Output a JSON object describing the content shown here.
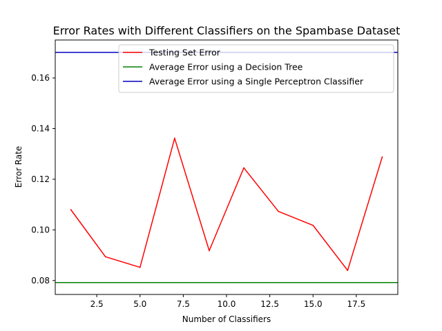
{
  "chart_data": {
    "type": "line",
    "title": "Error Rates with Different Classifiers on the Spambase Dataset",
    "xlabel": "Number of Classifiers",
    "ylabel": "Error Rate",
    "xlim": [
      0.1,
      19.9
    ],
    "ylim": [
      0.0745,
      0.175
    ],
    "xticks": [
      2.5,
      5.0,
      7.5,
      10.0,
      12.5,
      15.0,
      17.5
    ],
    "xtick_labels": [
      "2.5",
      "5.0",
      "7.5",
      "10.0",
      "12.5",
      "15.0",
      "17.5"
    ],
    "yticks": [
      0.08,
      0.1,
      0.12,
      0.14,
      0.16
    ],
    "ytick_labels": [
      "0.08",
      "0.10",
      "0.12",
      "0.14",
      "0.16"
    ],
    "grid": false,
    "legend_position": "top-right",
    "series": [
      {
        "name": "Testing Set Error",
        "color": "#ff0000",
        "kind": "line",
        "x": [
          1,
          3,
          5,
          7,
          9,
          11,
          13,
          15,
          17,
          19
        ],
        "y": [
          0.108,
          0.0894,
          0.0852,
          0.1362,
          0.0918,
          0.1245,
          0.1073,
          0.1018,
          0.084,
          0.1288
        ]
      },
      {
        "name": "Average Error using a Decision Tree",
        "color": "#008000",
        "kind": "hline",
        "y": 0.0792
      },
      {
        "name": "Average Error using a Single Perceptron Classifier",
        "color": "#0000bf",
        "kind": "hline",
        "y": 0.1701
      }
    ]
  }
}
